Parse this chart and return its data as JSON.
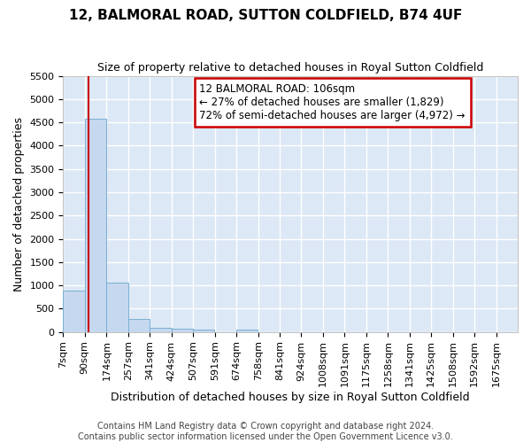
{
  "title": "12, BALMORAL ROAD, SUTTON COLDFIELD, B74 4UF",
  "subtitle": "Size of property relative to detached houses in Royal Sutton Coldfield",
  "xlabel": "Distribution of detached houses by size in Royal Sutton Coldfield",
  "ylabel": "Number of detached properties",
  "footer_line1": "Contains HM Land Registry data © Crown copyright and database right 2024.",
  "footer_line2": "Contains public sector information licensed under the Open Government Licence v3.0.",
  "annotation_line1": "12 BALMORAL ROAD: 106sqm",
  "annotation_line2": "← 27% of detached houses are smaller (1,829)",
  "annotation_line3": "72% of semi-detached houses are larger (4,972) →",
  "property_size": 106,
  "bin_labels": [
    "7sqm",
    "90sqm",
    "174sqm",
    "257sqm",
    "341sqm",
    "424sqm",
    "507sqm",
    "591sqm",
    "674sqm",
    "758sqm",
    "841sqm",
    "924sqm",
    "1008sqm",
    "1091sqm",
    "1175sqm",
    "1258sqm",
    "1341sqm",
    "1425sqm",
    "1508sqm",
    "1592sqm",
    "1675sqm"
  ],
  "bin_edges": [
    7,
    90,
    174,
    257,
    341,
    424,
    507,
    591,
    674,
    758,
    841,
    924,
    1008,
    1091,
    1175,
    1258,
    1341,
    1425,
    1508,
    1592,
    1675
  ],
  "bar_heights": [
    880,
    4580,
    1060,
    280,
    90,
    70,
    50,
    0,
    50,
    0,
    0,
    0,
    0,
    0,
    0,
    0,
    0,
    0,
    0,
    0
  ],
  "bar_color": "#c5d8ef",
  "bar_edge_color": "#7aafd4",
  "background_color": "#dce8f5",
  "grid_color": "#ffffff",
  "red_line_color": "#cc0000",
  "annotation_box_color": "#cc0000",
  "figure_bg": "#ffffff",
  "ylim": [
    0,
    5500
  ],
  "yticks": [
    0,
    500,
    1000,
    1500,
    2000,
    2500,
    3000,
    3500,
    4000,
    4500,
    5000,
    5500
  ],
  "title_fontsize": 11,
  "subtitle_fontsize": 9,
  "ylabel_fontsize": 9,
  "xlabel_fontsize": 9,
  "tick_fontsize": 8,
  "annotation_fontsize": 8.5,
  "footer_fontsize": 7
}
